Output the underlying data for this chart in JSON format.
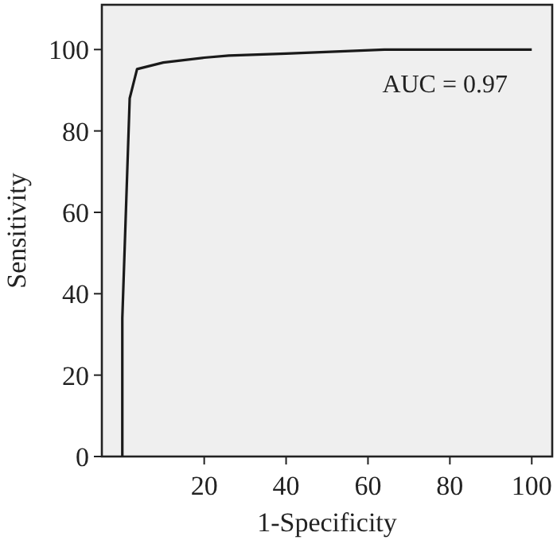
{
  "chart_data": {
    "type": "line",
    "xlabel": "1-Specificity",
    "ylabel": "Sensitivity",
    "annotations": [
      "AUC = 0.97"
    ],
    "x": [
      0,
      0,
      1.8,
      3.6,
      10,
      20,
      26,
      40,
      64,
      100
    ],
    "series": [
      {
        "color": "#1a1a1a",
        "values": [
          0,
          34,
          88,
          95.2,
          96.8,
          98,
          98.5,
          99,
          100,
          100
        ]
      }
    ],
    "xlim": [
      -5,
      105
    ],
    "xticks": [
      20,
      40,
      60,
      80,
      100
    ],
    "ylim": [
      0,
      111
    ],
    "yticks": [
      0,
      20,
      40,
      60,
      80,
      100
    ],
    "grid": false,
    "marker": "none",
    "line_style": "solid"
  }
}
